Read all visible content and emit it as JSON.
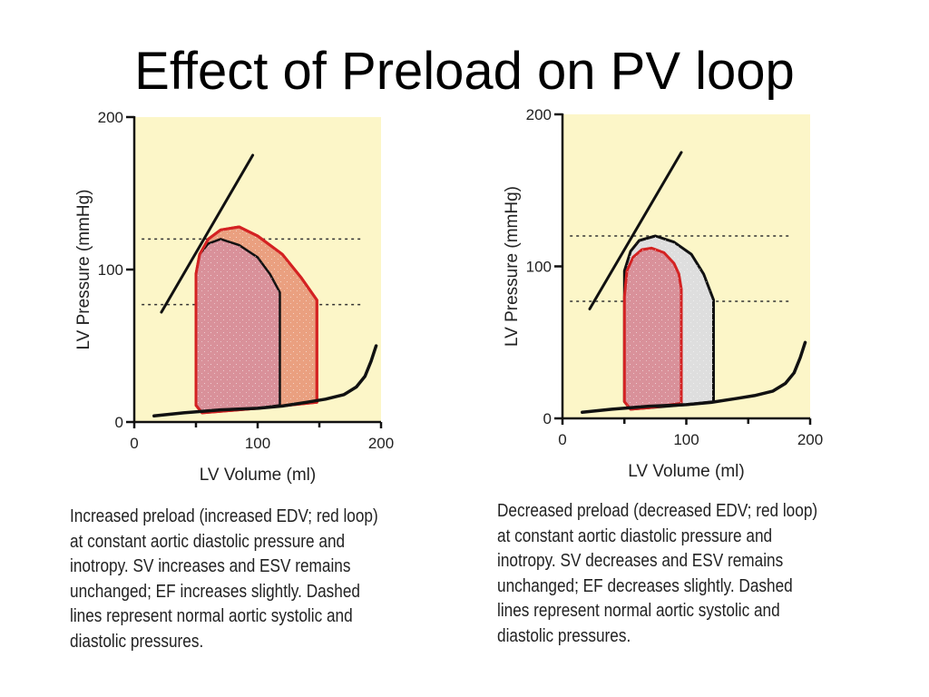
{
  "slide": {
    "title": "Effect of Preload on PV loop"
  },
  "colors": {
    "plot_background": "#fcf6c8",
    "loop_red_stroke": "#d42222",
    "loop_red_fill": "#d9919a",
    "expanded_loop_fill": "#eaa080",
    "normal_loop_fill": "#dedede",
    "curve_black": "#111111"
  },
  "chart_data": [
    {
      "type": "line",
      "name": "left-panel",
      "xlabel": "LV Volume (ml)",
      "ylabel": "LV Pressure (mmHg)",
      "xlim": [
        0,
        200
      ],
      "ylim": [
        0,
        200
      ],
      "x_ticks": [
        0,
        100,
        200
      ],
      "y_ticks": [
        0,
        100,
        200
      ],
      "x_tick_labels": [
        "0",
        "100",
        "200"
      ],
      "y_tick_labels": [
        "0",
        "100",
        "200"
      ],
      "grid": false,
      "reference_lines": [
        {
          "style": "dashed",
          "y": 120
        },
        {
          "style": "dashed",
          "y": 77
        }
      ],
      "espvr": {
        "x": [
          22,
          96
        ],
        "y": [
          72,
          175
        ]
      },
      "edpvr": {
        "x": [
          16,
          40,
          70,
          100,
          120,
          140,
          155,
          170,
          180,
          187,
          192,
          196
        ],
        "y": [
          4,
          6,
          8,
          9,
          10.5,
          13,
          15,
          18,
          23,
          30,
          40,
          50
        ]
      },
      "series": [
        {
          "role": "control-loop",
          "x": [
            118,
            118,
            110,
            100,
            85,
            70,
            60,
            53,
            50,
            50,
            55,
            70,
            100,
            118
          ],
          "y": [
            11,
            85,
            97,
            108,
            116,
            120,
            117,
            110,
            97,
            11,
            6,
            7,
            9,
            11
          ]
        },
        {
          "role": "red-loop",
          "x": [
            148,
            148,
            135,
            120,
            100,
            85,
            70,
            60,
            53,
            50,
            50,
            55,
            70,
            100,
            125,
            148
          ],
          "y": [
            13,
            80,
            95,
            110,
            122,
            128,
            126,
            120,
            110,
            97,
            11,
            6,
            7,
            9,
            11,
            13
          ]
        }
      ],
      "caption_lines": [
        "Increased preload (increased EDV; red loop)",
        "at constant aortic diastolic pressure and",
        "inotropy. SV increases and ESV remains",
        "unchanged; EF increases slightly. Dashed",
        "lines represent normal aortic systolic and",
        "diastolic pressures."
      ]
    },
    {
      "type": "line",
      "name": "right-panel",
      "xlabel": "LV Volume (ml)",
      "ylabel": "LV Pressure (mmHg)",
      "xlim": [
        0,
        200
      ],
      "ylim": [
        0,
        200
      ],
      "x_ticks": [
        0,
        100,
        200
      ],
      "y_ticks": [
        0,
        100,
        200
      ],
      "x_tick_labels": [
        "0",
        "100",
        "200"
      ],
      "y_tick_labels": [
        "0",
        "100",
        "200"
      ],
      "grid": false,
      "reference_lines": [
        {
          "style": "dashed",
          "y": 120
        },
        {
          "style": "dashed",
          "y": 77
        }
      ],
      "espvr": {
        "x": [
          22,
          96
        ],
        "y": [
          72,
          175
        ]
      },
      "edpvr": {
        "x": [
          16,
          40,
          70,
          100,
          120,
          140,
          155,
          170,
          180,
          187,
          192,
          196
        ],
        "y": [
          4,
          6,
          8,
          9,
          10.5,
          13,
          15,
          18,
          23,
          30,
          40,
          50
        ]
      },
      "series": [
        {
          "role": "control-loop",
          "x": [
            122,
            122,
            114,
            104,
            90,
            75,
            62,
            55,
            50,
            50,
            55,
            70,
            100,
            122
          ],
          "y": [
            11,
            78,
            95,
            108,
            116,
            120,
            117,
            110,
            97,
            11,
            6,
            7,
            9,
            11
          ]
        },
        {
          "role": "red-loop",
          "x": [
            96,
            96,
            94,
            90,
            82,
            72,
            64,
            57,
            52,
            50,
            50,
            55,
            70,
            96
          ],
          "y": [
            10,
            85,
            95,
            102,
            109,
            112,
            111,
            106,
            97,
            80,
            11,
            6,
            7,
            10
          ]
        }
      ],
      "caption_lines": [
        "Decreased preload (decreased EDV; red loop)",
        "at constant aortic diastolic pressure and",
        "inotropy. SV decreases and ESV remains",
        "unchanged; EF decreases slightly. Dashed",
        "lines represent normal aortic systolic and",
        "diastolic pressures."
      ]
    }
  ]
}
